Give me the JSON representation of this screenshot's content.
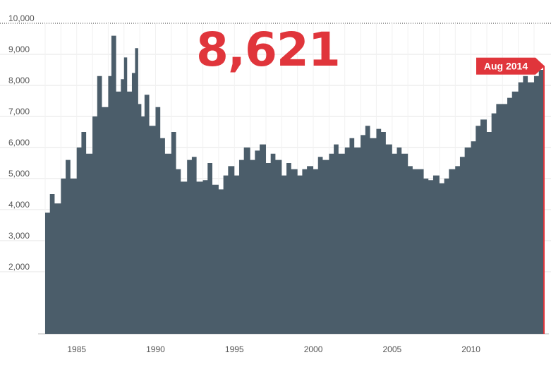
{
  "headline_value": "8,621",
  "latest_label": "Aug 2014",
  "colors": {
    "area": "#4b5d6a",
    "accent": "#e0353b",
    "grid": "#e6e6e6",
    "axis_text": "#555555"
  },
  "chart_data": {
    "type": "area",
    "title": "",
    "xlabel": "",
    "ylabel": "",
    "xlim": [
      1983.0,
      2014.67
    ],
    "ylim": [
      0,
      10000
    ],
    "yticks": [
      2000,
      3000,
      4000,
      5000,
      6000,
      7000,
      8000,
      9000,
      10000
    ],
    "ytick_labels": [
      "2,000",
      "3,000",
      "4,000",
      "5,000",
      "6,000",
      "7,000",
      "8,000",
      "9,000",
      "10,000"
    ],
    "xticks": [
      1985,
      1990,
      1995,
      2000,
      2005,
      2010
    ],
    "xtick_labels": [
      "1985",
      "1990",
      "1995",
      "2000",
      "2005",
      "2010"
    ],
    "grid": true,
    "series": [
      {
        "x": [
          1983.0,
          1983.3,
          1983.6,
          1984.0,
          1984.3,
          1984.6,
          1985.0,
          1985.3,
          1985.6,
          1986.0,
          1986.3,
          1986.6,
          1987.0,
          1987.2,
          1987.5,
          1987.8,
          1988.0,
          1988.2,
          1988.5,
          1988.7,
          1988.9,
          1989.1,
          1989.3,
          1989.6,
          1990.0,
          1990.3,
          1990.6,
          1991.0,
          1991.3,
          1991.6,
          1992.0,
          1992.3,
          1992.6,
          1993.0,
          1993.3,
          1993.6,
          1994.0,
          1994.3,
          1994.6,
          1995.0,
          1995.3,
          1995.6,
          1996.0,
          1996.3,
          1996.6,
          1997.0,
          1997.3,
          1997.6,
          1998.0,
          1998.3,
          1998.6,
          1999.0,
          1999.3,
          1999.6,
          2000.0,
          2000.3,
          2000.6,
          2001.0,
          2001.3,
          2001.6,
          2002.0,
          2002.3,
          2002.6,
          2003.0,
          2003.3,
          2003.6,
          2004.0,
          2004.3,
          2004.6,
          2005.0,
          2005.3,
          2005.6,
          2006.0,
          2006.3,
          2006.6,
          2007.0,
          2007.3,
          2007.6,
          2008.0,
          2008.3,
          2008.6,
          2009.0,
          2009.3,
          2009.6,
          2010.0,
          2010.3,
          2010.6,
          2011.0,
          2011.3,
          2011.6,
          2012.0,
          2012.3,
          2012.6,
          2013.0,
          2013.3,
          2013.6,
          2014.0,
          2014.3,
          2014.6
        ],
        "values": [
          3900,
          4500,
          4200,
          5000,
          5600,
          5000,
          6000,
          6500,
          5800,
          7000,
          8300,
          7300,
          8300,
          9600,
          7800,
          8200,
          8900,
          7800,
          8400,
          9200,
          7400,
          7000,
          7700,
          6700,
          7300,
          6300,
          5800,
          6500,
          5300,
          4900,
          5600,
          5700,
          4900,
          4950,
          5500,
          4800,
          4650,
          5100,
          5400,
          5100,
          5600,
          6000,
          5600,
          5900,
          6100,
          5500,
          5800,
          5600,
          5100,
          5500,
          5300,
          5100,
          5300,
          5400,
          5300,
          5700,
          5600,
          5800,
          6100,
          5800,
          6000,
          6300,
          6000,
          6400,
          6700,
          6300,
          6600,
          6500,
          6100,
          5800,
          6000,
          5800,
          5400,
          5300,
          5300,
          5000,
          4950,
          5100,
          4850,
          5000,
          5300,
          5400,
          5700,
          6000,
          6200,
          6700,
          6900,
          6500,
          7100,
          7400,
          7400,
          7600,
          7800,
          8100,
          8300,
          8100,
          8300,
          8500,
          8621
        ]
      }
    ],
    "annotations": [
      {
        "x": 2014.6,
        "y": 8621,
        "text": "Aug 2014"
      }
    ]
  }
}
